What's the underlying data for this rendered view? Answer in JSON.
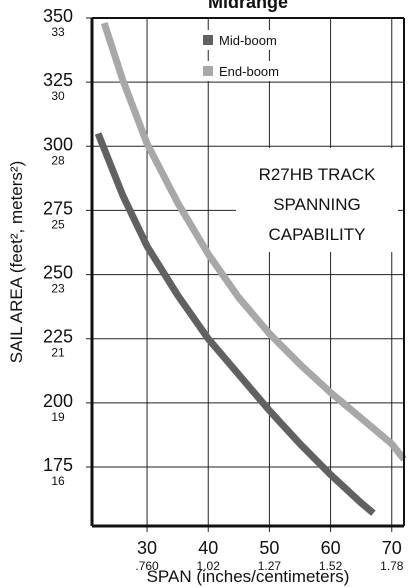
{
  "chart_data": {
    "type": "line",
    "title": "Midrange",
    "xlabel": "SPAN (inches/centimeters)",
    "ylabel": "SAIL AREA (feet², meters²)",
    "xlim": [
      21,
      72
    ],
    "ylim": [
      152,
      350
    ],
    "grid": true,
    "legend_position": "top-center",
    "x_ticks": [
      {
        "value": 30,
        "label": "30",
        "sublabel": ".760"
      },
      {
        "value": 40,
        "label": "40",
        "sublabel": "1.02"
      },
      {
        "value": 50,
        "label": "50",
        "sublabel": "1.27"
      },
      {
        "value": 60,
        "label": "60",
        "sublabel": "1.52"
      },
      {
        "value": 70,
        "label": "70",
        "sublabel": "1.78"
      }
    ],
    "y_ticks": [
      {
        "value": 350,
        "label": "350",
        "sublabel": "33"
      },
      {
        "value": 325,
        "label": "325",
        "sublabel": "30"
      },
      {
        "value": 300,
        "label": "300",
        "sublabel": "28"
      },
      {
        "value": 275,
        "label": "275",
        "sublabel": "25"
      },
      {
        "value": 250,
        "label": "250",
        "sublabel": "23"
      },
      {
        "value": 225,
        "label": "225",
        "sublabel": "21"
      },
      {
        "value": 200,
        "label": "200",
        "sublabel": "19"
      },
      {
        "value": 175,
        "label": "175",
        "sublabel": "16"
      }
    ],
    "annotation": [
      "R27HB TRACK",
      "SPANNING",
      "CAPABILITY"
    ],
    "series": [
      {
        "name": "Mid-boom",
        "color": "#616161",
        "points": [
          [
            22,
            305
          ],
          [
            26,
            281
          ],
          [
            30,
            261
          ],
          [
            35,
            242
          ],
          [
            40,
            225
          ],
          [
            45,
            211
          ],
          [
            50,
            197
          ],
          [
            55,
            184
          ],
          [
            60,
            172
          ],
          [
            65,
            161
          ],
          [
            67,
            157
          ]
        ]
      },
      {
        "name": "End-boom",
        "color": "#a8a8a8",
        "points": [
          [
            23,
            348
          ],
          [
            26,
            326
          ],
          [
            30,
            301
          ],
          [
            35,
            278
          ],
          [
            40,
            258
          ],
          [
            45,
            241
          ],
          [
            50,
            227
          ],
          [
            55,
            215
          ],
          [
            60,
            204
          ],
          [
            65,
            194
          ],
          [
            70,
            184
          ],
          [
            72,
            178
          ]
        ]
      }
    ]
  }
}
